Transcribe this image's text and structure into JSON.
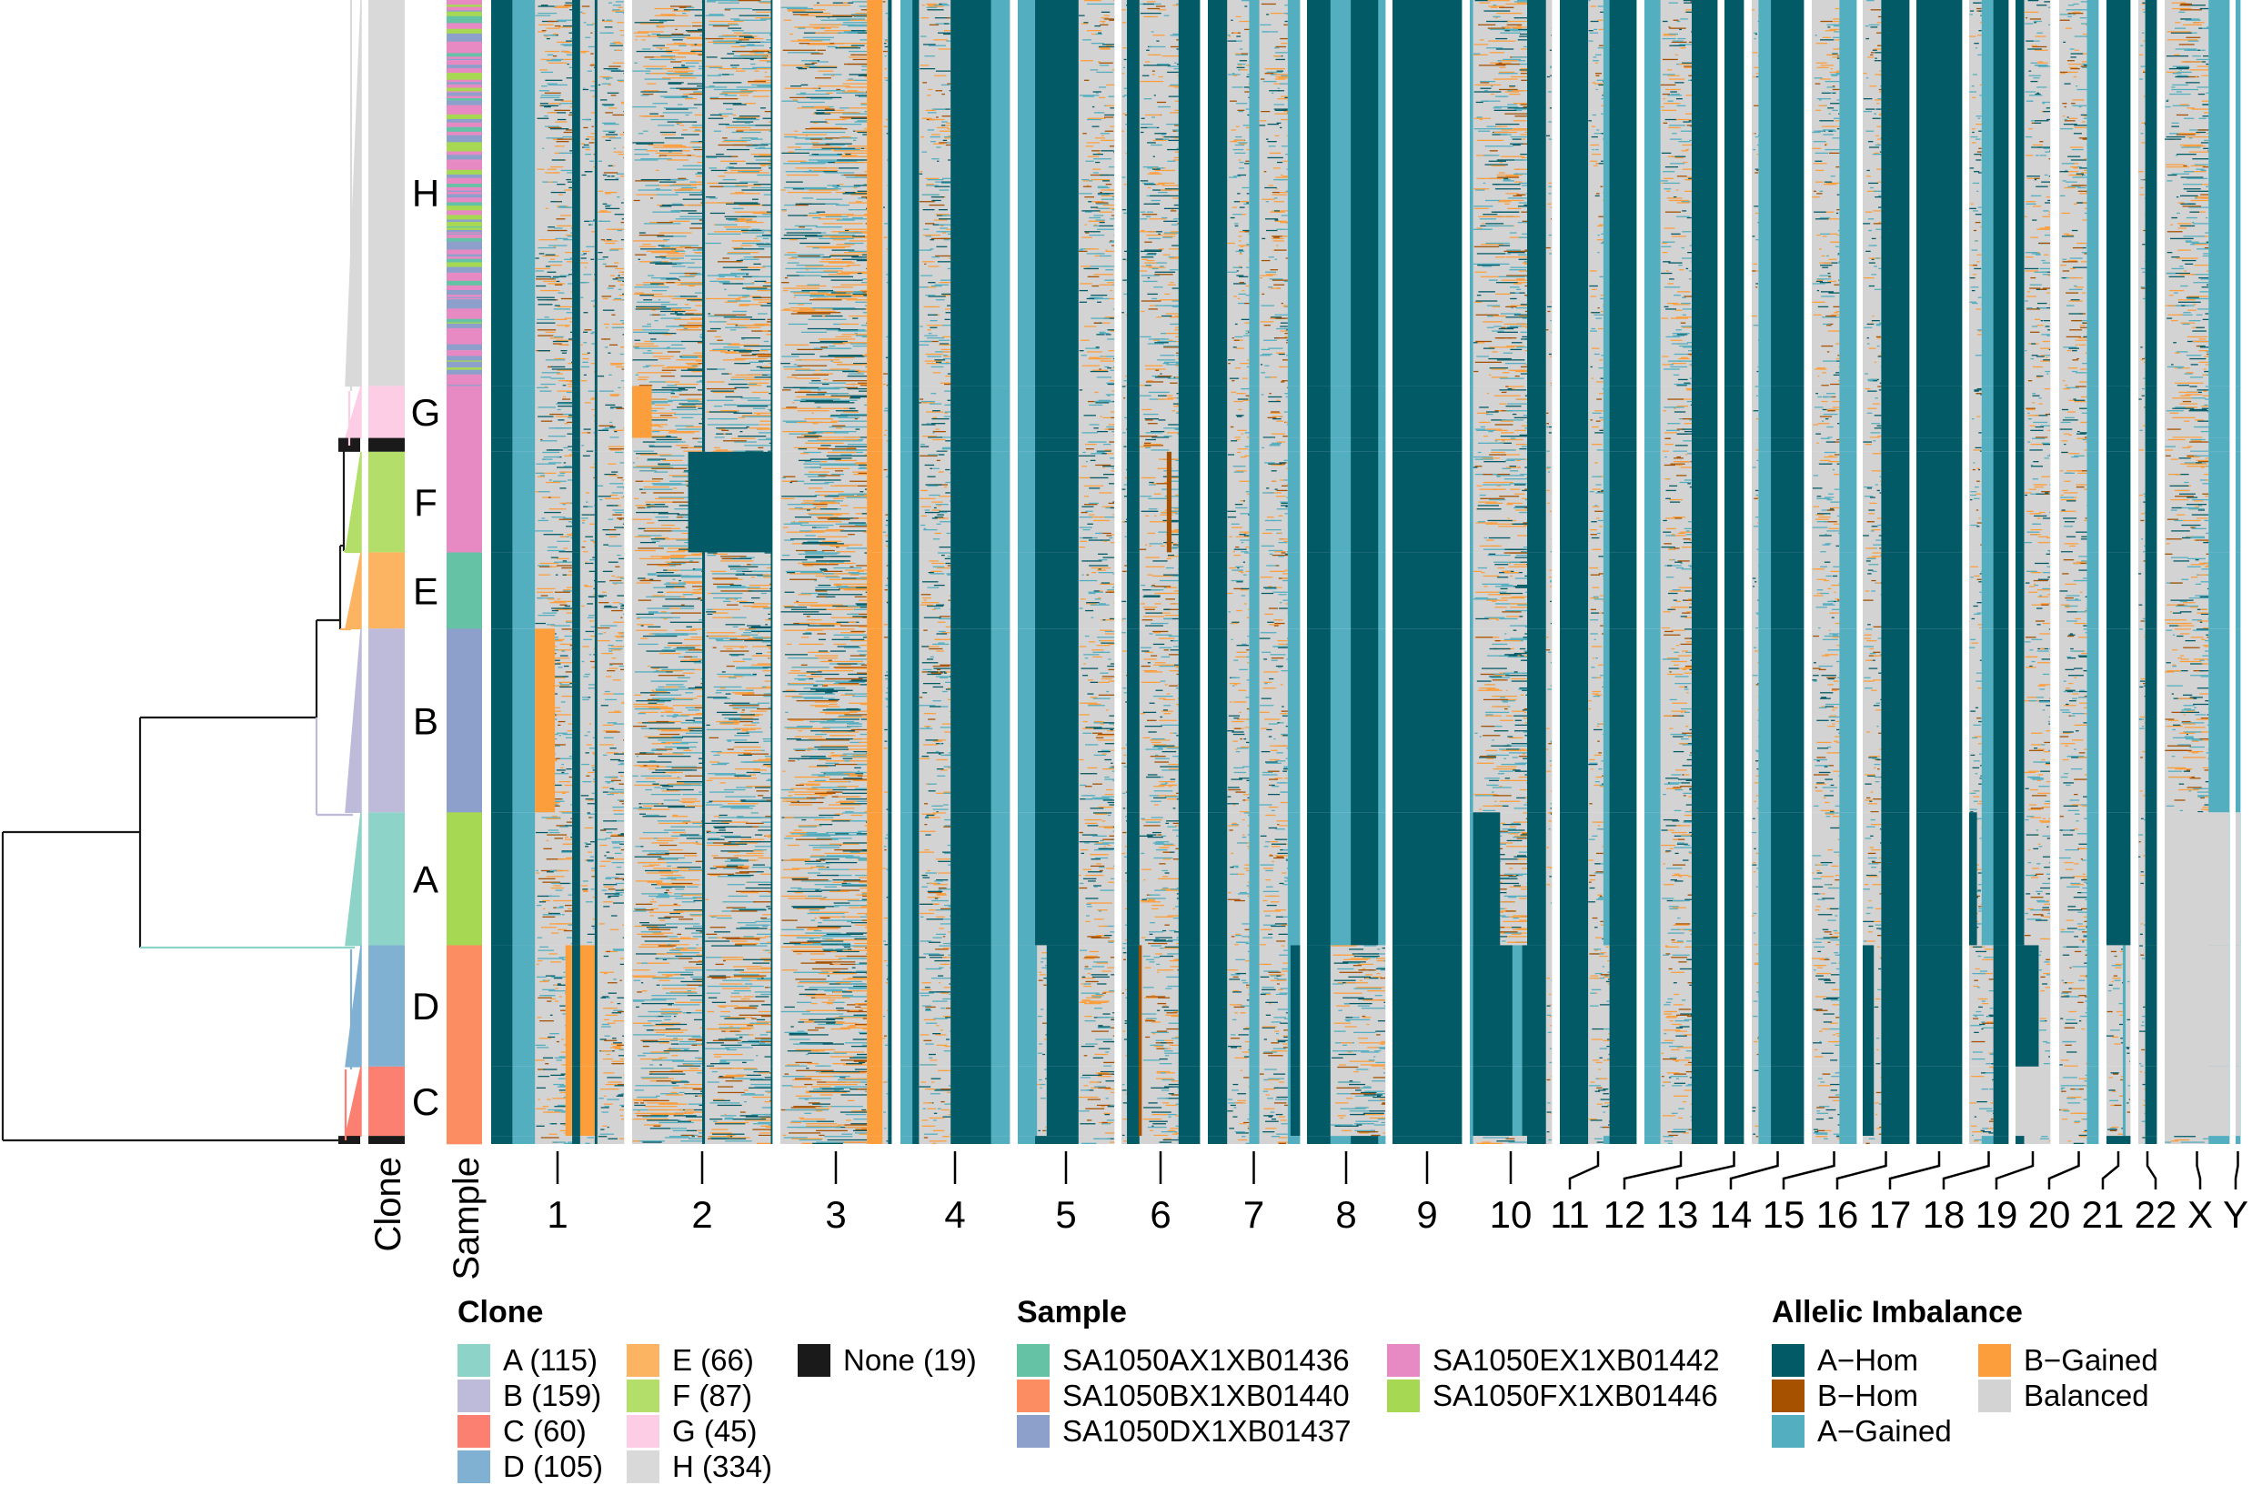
{
  "figure": {
    "clone_axis_label": "Clone",
    "sample_axis_label": "Sample"
  },
  "legend": {
    "clone": {
      "title": "Clone",
      "items": [
        {
          "label": "A (115)",
          "color": "#8DD3C7"
        },
        {
          "label": "B (159)",
          "color": "#BEBADA"
        },
        {
          "label": "C (60)",
          "color": "#FB8072"
        },
        {
          "label": "D (105)",
          "color": "#80B1D3"
        },
        {
          "label": "E (66)",
          "color": "#FDB462"
        },
        {
          "label": "F (87)",
          "color": "#B3DE69"
        },
        {
          "label": "G (45)",
          "color": "#FCCDE5"
        },
        {
          "label": "H (334)",
          "color": "#D9D9D9"
        },
        {
          "label": "None (19)",
          "color": "#1A1A1A"
        }
      ]
    },
    "sample": {
      "title": "Sample",
      "items": [
        {
          "label": "SA1050AX1XB01436",
          "color": "#66C2A5"
        },
        {
          "label": "SA1050BX1XB01440",
          "color": "#FC8D62"
        },
        {
          "label": "SA1050DX1XB01437",
          "color": "#8DA0CB"
        },
        {
          "label": "SA1050EX1XB01442",
          "color": "#E78AC3"
        },
        {
          "label": "SA1050FX1XB01446",
          "color": "#A6D854"
        }
      ]
    },
    "allelic": {
      "title": "Allelic Imbalance",
      "items": [
        {
          "label": "A−Hom",
          "code": "H",
          "color": "#025A66"
        },
        {
          "label": "B−Hom",
          "code": "b",
          "color": "#A65100"
        },
        {
          "label": "A−Gained",
          "code": "G",
          "color": "#53AEC0"
        },
        {
          "label": "B−Gained",
          "code": "O",
          "color": "#FD9E3C"
        },
        {
          "label": "Balanced",
          "code": "N",
          "color": "#D3D3D3"
        }
      ]
    }
  },
  "chart_data": {
    "type": "heatmap",
    "title": "",
    "xlabel": "",
    "ylabel": "",
    "row_groups": [
      {
        "clone": "H",
        "count": 334,
        "color": "#D9D9D9",
        "samples": {
          "SA1050EX1XB01442": 0.45,
          "SA1050DX1XB01437": 0.35,
          "SA1050FX1XB01446": 0.12,
          "SA1050AX1XB01436": 0.08
        }
      },
      {
        "clone": "G",
        "count": 45,
        "color": "#FCCDE5",
        "samples": {
          "SA1050EX1XB01442": 1
        }
      },
      {
        "clone": "None",
        "count": 12,
        "color": "#1A1A1A",
        "samples": {
          "SA1050EX1XB01442": 1
        }
      },
      {
        "clone": "F",
        "count": 87,
        "color": "#B3DE69",
        "samples": {
          "SA1050EX1XB01442": 1
        }
      },
      {
        "clone": "E",
        "count": 66,
        "color": "#FDB462",
        "samples": {
          "SA1050AX1XB01436": 1
        }
      },
      {
        "clone": "B",
        "count": 159,
        "color": "#BEBADA",
        "samples": {
          "SA1050DX1XB01437": 1
        }
      },
      {
        "clone": "A",
        "count": 115,
        "color": "#8DD3C7",
        "samples": {
          "SA1050FX1XB01446": 1
        }
      },
      {
        "clone": "D",
        "count": 105,
        "color": "#80B1D3",
        "samples": {
          "SA1050BX1XB01440": 1
        }
      },
      {
        "clone": "C",
        "count": 60,
        "color": "#FB8072",
        "samples": {
          "SA1050BX1XB01440": 1
        }
      },
      {
        "clone": "None",
        "count": 7,
        "color": "#1A1A1A",
        "samples": {
          "SA1050BX1XB01440": 1
        }
      }
    ],
    "bottom_clones": [
      "D",
      "C"
    ],
    "chromosomes": [
      {
        "name": "1",
        "top": [
          [
            "H",
            0.16
          ],
          [
            "G",
            0.17
          ],
          [
            "N",
            0.28
          ],
          [
            "H",
            0.06
          ],
          [
            "N",
            0.11
          ],
          [
            "H",
            0.02
          ],
          [
            "N",
            0.2
          ]
        ],
        "bottom": [
          [
            "H",
            0.16
          ],
          [
            "G",
            0.17
          ],
          [
            "N",
            0.23
          ],
          [
            "O",
            0.05
          ],
          [
            "H",
            0.06
          ],
          [
            "O",
            0.11
          ],
          [
            "H",
            0.02
          ],
          [
            "N",
            0.2
          ]
        ]
      },
      {
        "name": "2",
        "top": [
          [
            "N",
            0.5
          ],
          [
            "H",
            0.02
          ],
          [
            "N",
            0.47
          ],
          [
            "H",
            0.01
          ]
        ]
      },
      {
        "name": "3",
        "top": [
          [
            "N",
            0.78
          ],
          [
            "O",
            0.14
          ],
          [
            "N",
            0.05
          ],
          [
            "H",
            0.03
          ]
        ]
      },
      {
        "name": "4",
        "top": [
          [
            "G",
            0.11
          ],
          [
            "H",
            0.06
          ],
          [
            "N",
            0.29
          ],
          [
            "H",
            0.37
          ],
          [
            "G",
            0.17
          ]
        ]
      },
      {
        "name": "5",
        "top": [
          [
            "G",
            0.18
          ],
          [
            "H",
            0.45
          ],
          [
            "N",
            0.37
          ]
        ],
        "bottom": [
          [
            "G",
            0.2
          ],
          [
            "N",
            0.1
          ],
          [
            "H",
            0.33
          ],
          [
            "N",
            0.37
          ]
        ]
      },
      {
        "name": "6",
        "top": [
          [
            "N",
            0.07
          ],
          [
            "H",
            0.16
          ],
          [
            "N",
            0.5
          ],
          [
            "H",
            0.27
          ]
        ],
        "bottom": [
          [
            "N",
            0.07
          ],
          [
            "H",
            0.15
          ],
          [
            "b",
            0.04
          ],
          [
            "N",
            0.47
          ],
          [
            "H",
            0.27
          ]
        ]
      },
      {
        "name": "7",
        "top": [
          [
            "H",
            0.21
          ],
          [
            "N",
            0.24
          ],
          [
            "G",
            0.11
          ],
          [
            "N",
            0.31
          ],
          [
            "G",
            0.13
          ]
        ],
        "bottom": [
          [
            "H",
            0.21
          ],
          [
            "N",
            0.24
          ],
          [
            "G",
            0.11
          ],
          [
            "N",
            0.31
          ],
          [
            "G",
            0.03
          ],
          [
            "H",
            0.1
          ]
        ]
      },
      {
        "name": "8",
        "top": [
          [
            "H",
            0.3
          ],
          [
            "G",
            0.26
          ],
          [
            "H",
            0.35
          ],
          [
            "G",
            0.09
          ]
        ],
        "bottom": [
          [
            "H",
            0.3
          ],
          [
            "N",
            0.7
          ]
        ]
      },
      {
        "name": "9",
        "top": [
          [
            "H",
            1
          ]
        ]
      },
      {
        "name": "10",
        "top": [
          [
            "G",
            0.04
          ],
          [
            "N",
            0.66
          ],
          [
            "H",
            0.23
          ],
          [
            "N",
            0.07
          ]
        ],
        "bottom": [
          [
            "G",
            0.04
          ],
          [
            "H",
            0.48
          ],
          [
            "G",
            0.12
          ],
          [
            "H",
            0.29
          ],
          [
            "N",
            0.07
          ]
        ]
      },
      {
        "name": "11",
        "top": [
          [
            "H",
            0.37
          ],
          [
            "N",
            0.2
          ],
          [
            "G",
            0.08
          ],
          [
            "H",
            0.35
          ]
        ],
        "bottom": [
          [
            "H",
            0.37
          ],
          [
            "N",
            0.28
          ],
          [
            "H",
            0.35
          ]
        ]
      },
      {
        "name": "12",
        "top": [
          [
            "G",
            0.22
          ],
          [
            "N",
            0.43
          ],
          [
            "H",
            0.35
          ]
        ]
      },
      {
        "name": "13",
        "top": [
          [
            "H",
            1
          ]
        ]
      },
      {
        "name": "14",
        "top": [
          [
            "N",
            0.13
          ],
          [
            "G",
            0.24
          ],
          [
            "H",
            0.63
          ]
        ]
      },
      {
        "name": "15",
        "top": [
          [
            "N",
            0.62
          ],
          [
            "G",
            0.38
          ]
        ]
      },
      {
        "name": "16",
        "top": [
          [
            "N",
            0.4
          ],
          [
            "H",
            0.6
          ]
        ],
        "bottom": [
          [
            "H",
            0.24
          ],
          [
            "N",
            0.16
          ],
          [
            "H",
            0.6
          ]
        ]
      },
      {
        "name": "17",
        "top": [
          [
            "H",
            1
          ]
        ]
      },
      {
        "name": "18",
        "top": [
          [
            "N",
            0.32
          ],
          [
            "G",
            0.3
          ],
          [
            "H",
            0.38
          ]
        ],
        "bottom": [
          [
            "N",
            0.62
          ],
          [
            "H",
            0.38
          ]
        ]
      },
      {
        "name": "19",
        "top": [
          [
            "H",
            0.25
          ],
          [
            "N",
            0.75
          ]
        ],
        "bottom": [
          [
            "H",
            0.67
          ],
          [
            "N",
            0.33
          ]
        ]
      },
      {
        "name": "20",
        "top": [
          [
            "N",
            0.71
          ],
          [
            "G",
            0.29
          ]
        ]
      },
      {
        "name": "21",
        "top": [
          [
            "H",
            1
          ]
        ],
        "bottom": [
          [
            "N",
            0.69
          ],
          [
            "G",
            0.12
          ],
          [
            "N",
            0.19
          ]
        ]
      },
      {
        "name": "22",
        "top": [
          [
            "N",
            0.38
          ],
          [
            "H",
            0.62
          ]
        ]
      },
      {
        "name": "X",
        "top": [
          [
            "N",
            0.68
          ],
          [
            "G",
            0.32
          ]
        ]
      },
      {
        "name": "Y",
        "top": [
          [
            "G",
            1
          ]
        ]
      }
    ],
    "clone_specific_blocks": [
      {
        "chromosome": "1",
        "clone": "B",
        "from": 0.33,
        "to": 0.48,
        "state": "O"
      },
      {
        "chromosome": "2",
        "clone": "F",
        "from": 0.4,
        "to": 1.0,
        "state": "H"
      },
      {
        "chromosome": "2",
        "clone": "G",
        "from": 0.0,
        "to": 0.14,
        "state": "O"
      },
      {
        "chromosome": "6",
        "clone": "F",
        "from": 0.58,
        "to": 0.64,
        "state": "b"
      },
      {
        "chromosome": "10",
        "clone": "A",
        "from": 0.04,
        "to": 0.37,
        "state": "H"
      },
      {
        "chromosome": "18",
        "clone": "A",
        "from": 0.0,
        "to": 0.2,
        "state": "H"
      },
      {
        "chromosome": "19",
        "clone": "C",
        "from": 0.0,
        "to": 1.0,
        "state": "N"
      },
      {
        "chromosome": "X",
        "clone": "A",
        "from": 0.0,
        "to": 1.0,
        "state": "N"
      },
      {
        "chromosome": "X",
        "clone": "D",
        "from": 0.0,
        "to": 1.0,
        "state": "N"
      },
      {
        "chromosome": "X",
        "clone": "C",
        "from": 0.0,
        "to": 1.0,
        "state": "N"
      },
      {
        "chromosome": "Y",
        "clone": "A",
        "from": 0.0,
        "to": 1.0,
        "state": "N"
      },
      {
        "chromosome": "Y",
        "clone": "D",
        "from": 0.0,
        "to": 1.0,
        "state": "N"
      },
      {
        "chromosome": "Y",
        "clone": "C",
        "from": 0.0,
        "to": 1.0,
        "state": "N"
      }
    ]
  }
}
